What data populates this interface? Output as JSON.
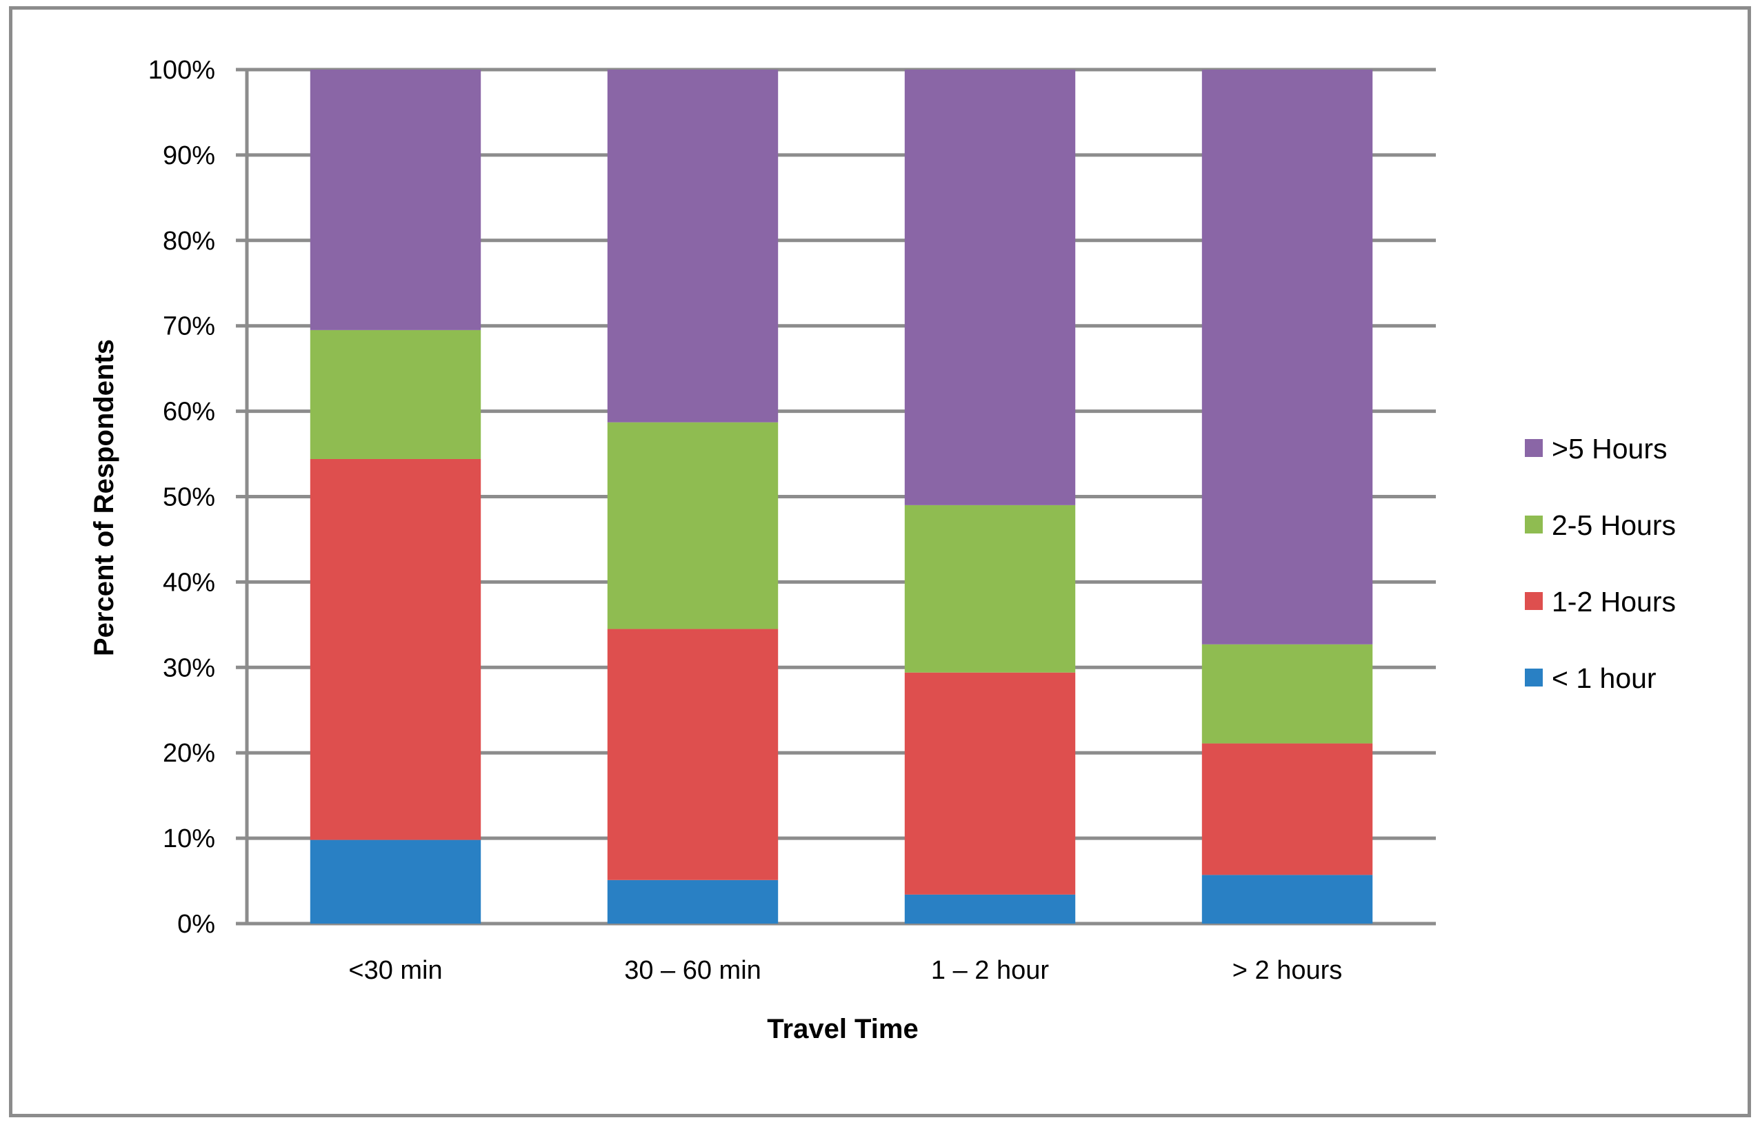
{
  "chart_data": {
    "type": "bar",
    "stacked": true,
    "normalized": true,
    "title": "",
    "xlabel": "Travel Time",
    "ylabel": "Percent of Respondents",
    "categories": [
      "<30 min",
      "30 – 60 min",
      "1 – 2 hour",
      "> 2 hours"
    ],
    "ylim": [
      0,
      100
    ],
    "yticks": [
      "0%",
      "10%",
      "20%",
      "30%",
      "40%",
      "50%",
      "60%",
      "70%",
      "80%",
      "90%",
      "100%"
    ],
    "grid": true,
    "legend_position": "right",
    "series": [
      {
        "name": "< 1 hour",
        "color": "#2980c4",
        "values": [
          9.8,
          5.1,
          3.4,
          5.7
        ]
      },
      {
        "name": "1-2  Hours",
        "color": "#de4f4e",
        "values": [
          44.6,
          29.4,
          26.0,
          15.4
        ]
      },
      {
        "name": "2-5 Hours",
        "color": "#8fbc51",
        "values": [
          15.1,
          24.2,
          19.6,
          11.6
        ]
      },
      {
        "name": ">5 Hours",
        "color": "#8a66a6",
        "values": [
          30.5,
          41.3,
          51.0,
          67.3
        ]
      }
    ]
  }
}
